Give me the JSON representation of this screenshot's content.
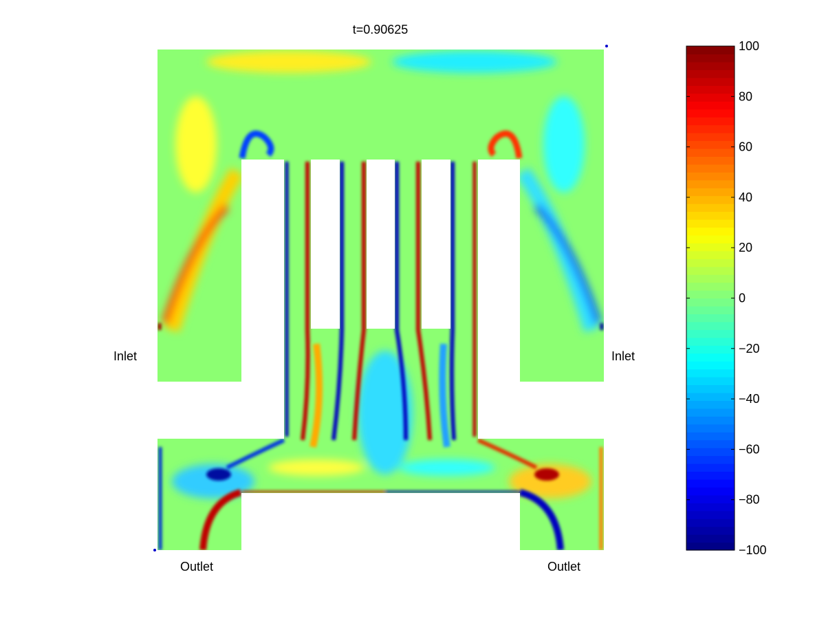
{
  "chart_data": {
    "type": "heatmap",
    "title": "t=0.90625",
    "colormap": "jet",
    "colormap_levels": 64,
    "clim": [
      -100,
      100
    ],
    "colorbar": {
      "ticks": [
        100,
        80,
        60,
        40,
        20,
        0,
        -20,
        -40,
        -60,
        -80,
        -100
      ],
      "tick_labels": [
        "100",
        "80",
        "60",
        "40",
        "20",
        "0",
        "−20",
        "−40",
        "−60",
        "−80",
        "−100"
      ],
      "placement": "right"
    },
    "annotations": {
      "inlet_left": "Inlet",
      "inlet_right": "Inlet",
      "outlet_left": "Outlet",
      "outlet_right": "Outlet"
    },
    "colors": {
      "zero": "#8cff72",
      "positive_max": "#800000",
      "negative_max": "#000080",
      "obstacle": "#ffffff"
    }
  }
}
